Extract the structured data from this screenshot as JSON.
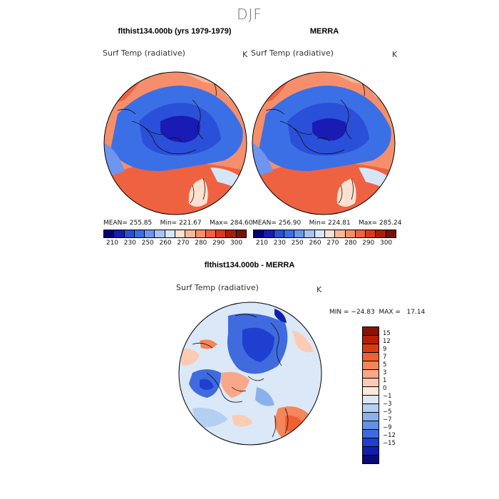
{
  "figure": {
    "title": "DJF",
    "panels": [
      {
        "title": "flthist134.000b (yrs 1979-1979)",
        "variable": "Surf Temp (radiative)",
        "units": "K",
        "stats": {
          "mean": "255.85",
          "min": "221.67",
          "max": "284.60"
        },
        "stats_text": "MEAN= 255.85    Min= 221.67    Max= 284.60"
      },
      {
        "title": "MERRA",
        "variable": "Surf Temp (radiative)",
        "units": "K",
        "stats": {
          "mean": "256.90",
          "min": "224.81",
          "max": "285.24"
        },
        "stats_text": "MEAN= 256.90    Min= 224.81    Max= 285.24"
      },
      {
        "title": "flthist134.000b - MERRA",
        "variable": "Surf Temp (radiative)",
        "units": "K",
        "stats": {
          "min": "-24.83",
          "max": "17.14"
        },
        "stats_text": "MIN = −24.83  MAX =   17.14"
      }
    ],
    "abs_colorbar": {
      "ticks": [
        "210",
        "230",
        "250",
        "260",
        "270",
        "280",
        "290",
        "300"
      ],
      "colors": [
        "#08006e",
        "#1a1ab4",
        "#2a4fd9",
        "#3b6fe6",
        "#6e95ef",
        "#a8c3f5",
        "#d6e6fa",
        "#fde0cf",
        "#f9b79a",
        "#f58f6b",
        "#ee6242",
        "#d93a1e",
        "#a81f08",
        "#7a1004"
      ]
    },
    "diff_colorbar": {
      "ticks": [
        "15",
        "12",
        "9",
        "7",
        "5",
        "3",
        "1",
        "0",
        "−1",
        "−3",
        "−5",
        "−7",
        "−9",
        "−12",
        "−15"
      ],
      "colors": [
        "#8a1204",
        "#b71f05",
        "#de3a12",
        "#f0612f",
        "#f5855a",
        "#f8a888",
        "#fbcbb4",
        "#fde9dc",
        "#dbe8f7",
        "#b3cff2",
        "#8bb1ec",
        "#6490e6",
        "#3f6bde",
        "#1f3fd0",
        "#1020ac",
        "#0a0a78"
      ]
    }
  }
}
